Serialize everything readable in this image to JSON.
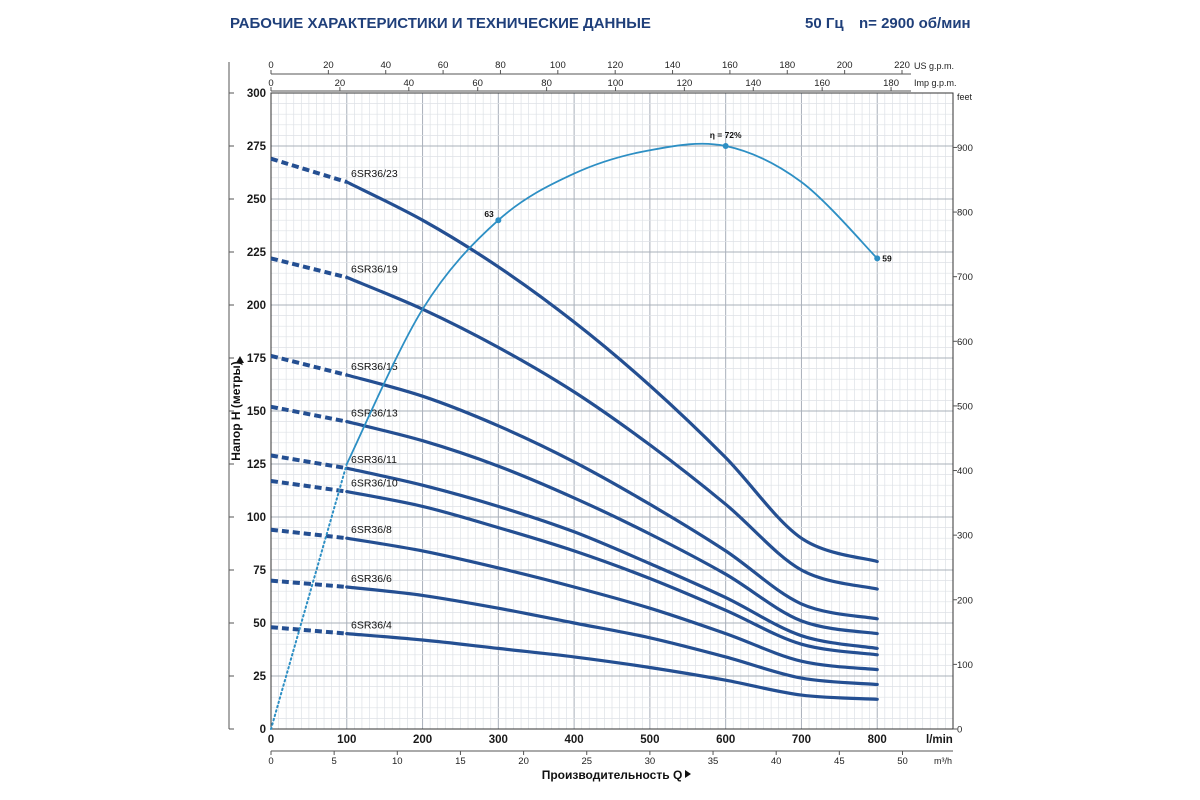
{
  "header": {
    "title": "РАБОЧИЕ ХАРАКТЕРИСТИКИ И ТЕХНИЧЕСКИЕ ДАННЫЕ",
    "freq": "50 Гц",
    "speed": "n= 2900 об/мин"
  },
  "chart_data": {
    "type": "line",
    "x_axes": {
      "lmin": {
        "unit": "l/min",
        "range": [
          0,
          900
        ],
        "ticks": [
          0,
          100,
          200,
          300,
          400,
          500,
          600,
          700,
          800
        ]
      },
      "m3h": {
        "unit": "m³/h",
        "ticks": [
          0,
          5,
          10,
          15,
          20,
          25,
          30,
          35,
          40,
          45,
          50
        ]
      },
      "usgpm": {
        "unit": "US g.p.m.",
        "ticks": [
          0,
          20,
          40,
          60,
          80,
          100,
          120,
          140,
          160,
          180,
          200,
          220
        ]
      },
      "impgpm": {
        "unit": "Imp g.p.m.",
        "ticks": [
          0,
          20,
          40,
          60,
          80,
          100,
          120,
          140,
          160,
          180
        ]
      }
    },
    "y_axes": {
      "left": {
        "label": "Напор H (метры)",
        "range": [
          0,
          300
        ],
        "ticks": [
          0,
          25,
          50,
          75,
          100,
          125,
          150,
          175,
          200,
          225,
          250,
          275,
          300
        ]
      },
      "right": {
        "unit": "feet",
        "ticks": [
          0,
          100,
          200,
          300,
          400,
          500,
          600,
          700,
          800,
          900
        ]
      }
    },
    "xlabel": "Производительность Q",
    "grid": true,
    "series": [
      {
        "name": "6SR36/23",
        "x": [
          0,
          100,
          200,
          300,
          400,
          500,
          600,
          700,
          800
        ],
        "y": [
          269,
          258,
          240,
          218,
          192,
          162,
          128,
          90,
          79
        ]
      },
      {
        "name": "6SR36/19",
        "x": [
          0,
          100,
          200,
          300,
          400,
          500,
          600,
          700,
          800
        ],
        "y": [
          222,
          213,
          198,
          180,
          159,
          134,
          106,
          75,
          66
        ]
      },
      {
        "name": "6SR36/15",
        "x": [
          0,
          100,
          200,
          300,
          400,
          500,
          600,
          700,
          800
        ],
        "y": [
          176,
          167,
          157,
          143,
          126,
          106,
          84,
          59,
          52
        ]
      },
      {
        "name": "6SR36/13",
        "x": [
          0,
          100,
          200,
          300,
          400,
          500,
          600,
          700,
          800
        ],
        "y": [
          152,
          145,
          136,
          124,
          109,
          92,
          73,
          51,
          45
        ]
      },
      {
        "name": "6SR36/11",
        "x": [
          0,
          100,
          200,
          300,
          400,
          500,
          600,
          700,
          800
        ],
        "y": [
          129,
          123,
          115,
          105,
          93,
          78,
          62,
          44,
          38
        ]
      },
      {
        "name": "6SR36/10",
        "x": [
          0,
          100,
          200,
          300,
          400,
          500,
          600,
          700,
          800
        ],
        "y": [
          117,
          112,
          105,
          95,
          84,
          71,
          56,
          40,
          35
        ]
      },
      {
        "name": "6SR36/8",
        "x": [
          0,
          100,
          200,
          300,
          400,
          500,
          600,
          700,
          800
        ],
        "y": [
          94,
          90,
          84,
          76,
          67,
          57,
          45,
          32,
          28
        ]
      },
      {
        "name": "6SR36/6",
        "x": [
          0,
          100,
          200,
          300,
          400,
          500,
          600,
          700,
          800
        ],
        "y": [
          70,
          67,
          63,
          57,
          50,
          43,
          34,
          24,
          21
        ]
      },
      {
        "name": "6SR36/4",
        "x": [
          0,
          100,
          200,
          300,
          400,
          500,
          600,
          700,
          800
        ],
        "y": [
          48,
          45,
          42,
          38,
          34,
          29,
          23,
          16,
          14
        ]
      }
    ],
    "efficiency": {
      "label_max": "η = 72%",
      "x": [
        0,
        100,
        200,
        300,
        400,
        500,
        600,
        700,
        800
      ],
      "y": [
        0,
        125,
        198,
        240,
        262,
        273,
        275,
        258,
        222
      ],
      "markers": [
        {
          "label": "63",
          "x": 300,
          "y": 240
        },
        {
          "label": "η = 72%",
          "x": 600,
          "y": 275
        },
        {
          "label": "59",
          "x": 800,
          "y": 222
        }
      ]
    }
  }
}
